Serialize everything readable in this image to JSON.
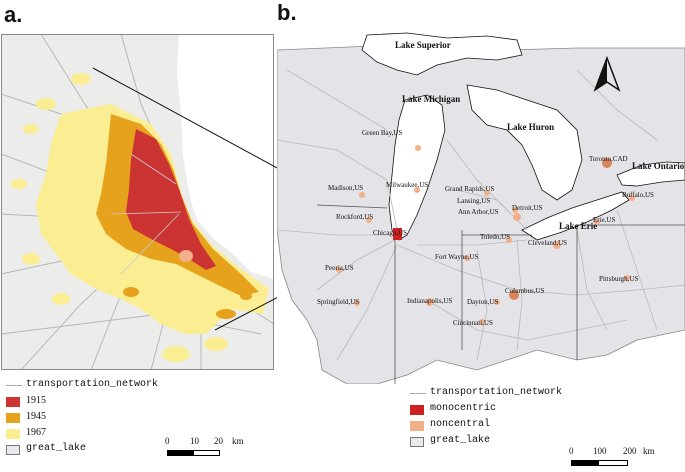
{
  "panels": {
    "a": "a.",
    "b": "b."
  },
  "panel_a": {
    "legend": [
      {
        "label": "transportation_network",
        "kind": "line",
        "color": "#aaaaaa"
      },
      {
        "label": "1915",
        "kind": "fill",
        "color": "#cc3333"
      },
      {
        "label": "1945",
        "kind": "fill",
        "color": "#e6a21c"
      },
      {
        "label": "1967",
        "kind": "fill",
        "color": "#fbee92"
      },
      {
        "label": "great_lake",
        "kind": "fill",
        "color": "#e9e9ee"
      }
    ],
    "scale": {
      "ticks": [
        "0",
        "10",
        "20"
      ],
      "unit": "km"
    }
  },
  "panel_b": {
    "lakes": [
      "Lake Superior",
      "Lake Michigan",
      "Lake Huron",
      "Lake Ontario",
      "Lake Erie"
    ],
    "north_arrow": "north-arrow-icon",
    "cities": [
      {
        "name": "Green Bay,US",
        "type": "noncentral"
      },
      {
        "name": "Madison,US",
        "type": "noncentral"
      },
      {
        "name": "Milwaukee,US",
        "type": "noncentral"
      },
      {
        "name": "Grand Rapids,US",
        "type": "noncentral"
      },
      {
        "name": "Lansing,US",
        "type": "noncentral"
      },
      {
        "name": "Detroit,US",
        "type": "noncentral"
      },
      {
        "name": "Ann Arbor,US",
        "type": "noncentral"
      },
      {
        "name": "Rockford,US",
        "type": "noncentral"
      },
      {
        "name": "Chicago,US",
        "type": "monocentric"
      },
      {
        "name": "Toledo,US",
        "type": "noncentral"
      },
      {
        "name": "Toronto,CAD",
        "type": "noncentral"
      },
      {
        "name": "Buffalo,US",
        "type": "noncentral"
      },
      {
        "name": "Erie,US",
        "type": "noncentral"
      },
      {
        "name": "Cleveland,US",
        "type": "noncentral"
      },
      {
        "name": "Peoria,US",
        "type": "noncentral"
      },
      {
        "name": "Fort Wayne,US",
        "type": "noncentral"
      },
      {
        "name": "Springfield,US",
        "type": "noncentral"
      },
      {
        "name": "Indianapolis,US",
        "type": "noncentral"
      },
      {
        "name": "Dayton,US",
        "type": "noncentral"
      },
      {
        "name": "Columbus,US",
        "type": "noncentral"
      },
      {
        "name": "Pittsburgh,US",
        "type": "noncentral"
      },
      {
        "name": "Cincinnati,US",
        "type": "noncentral"
      }
    ],
    "legend": [
      {
        "label": "transportation_network",
        "kind": "line",
        "color": "#aaaaaa"
      },
      {
        "label": "monocentric",
        "kind": "fill",
        "color": "#cc2222"
      },
      {
        "label": "noncentral",
        "kind": "fill",
        "color": "#f2b089"
      },
      {
        "label": "great_lake",
        "kind": "fill",
        "color": "#e9e9ee"
      }
    ],
    "scale": {
      "ticks": [
        "0",
        "100",
        "200"
      ],
      "unit": "km"
    }
  }
}
